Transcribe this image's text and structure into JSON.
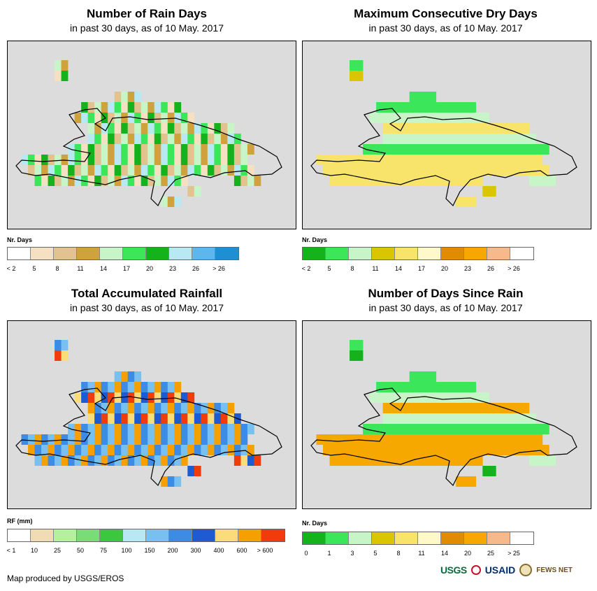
{
  "panels": [
    {
      "id": "rain-days",
      "title": "Number of Rain Days",
      "subtitle": "in past 30 days, as of 10 May. 2017",
      "legend_title": "Nr. Days",
      "legend_ticks": [
        "< 2",
        "5",
        "8",
        "11",
        "14",
        "17",
        "20",
        "23",
        "26",
        "> 26"
      ],
      "legend_colors": [
        "#ffffff",
        "#f5e1c2",
        "#e2c38f",
        "#cfa23d",
        "#c8f5c8",
        "#3ce65a",
        "#16b21e",
        "#b8e8f2",
        "#5fb6ea",
        "#1e8fd0"
      ],
      "grid_fill": [
        "#e2c38f",
        "#cfa23d",
        "#3ce65a",
        "#16b21e",
        "#c8f5c8",
        "#b8e8f2",
        "#f5e1c2"
      ]
    },
    {
      "id": "max-dry-days",
      "title": "Maximum Consecutive Dry Days",
      "subtitle": "in past 30 days, as of 10 May. 2017",
      "legend_title": "Nr. Days",
      "legend_ticks": [
        "< 2",
        "5",
        "8",
        "11",
        "14",
        "17",
        "20",
        "23",
        "26",
        "> 26"
      ],
      "legend_colors": [
        "#16b21e",
        "#3ce65a",
        "#c8f5c8",
        "#d9c600",
        "#f8e46a",
        "#fff8c8",
        "#e08c00",
        "#f6a800",
        "#f7b98a",
        "#ffffff"
      ],
      "grid_fill": [
        "#c8f5c8",
        "#3ce65a",
        "#d9c600",
        "#f8e46a"
      ]
    },
    {
      "id": "total-rainfall",
      "title": "Total Accumulated Rainfall",
      "subtitle": "in past 30 days, as of 10 May. 2017",
      "legend_title": "RF (mm)",
      "legend_ticks": [
        "< 1",
        "10",
        "25",
        "50",
        "75",
        "100",
        "150",
        "200",
        "300",
        "400",
        "600",
        "> 600"
      ],
      "legend_colors": [
        "#ffffff",
        "#f0dcb4",
        "#b4f0a0",
        "#78dc78",
        "#3cc83c",
        "#b8e8f2",
        "#78c0f0",
        "#3c8ce6",
        "#1e5ad2",
        "#fadc78",
        "#f5a000",
        "#f03c0a"
      ],
      "grid_fill": [
        "#1e5ad2",
        "#3c8ce6",
        "#fadc78",
        "#f5a000",
        "#f03c0a",
        "#78c0f0"
      ]
    },
    {
      "id": "days-since-rain",
      "title": "Number of Days Since Rain",
      "subtitle": "in past 30 days, as of 10 May. 2017",
      "legend_title": "Nr. Days",
      "legend_ticks": [
        "0",
        "1",
        "3",
        "5",
        "8",
        "11",
        "14",
        "20",
        "25",
        "> 25"
      ],
      "legend_colors": [
        "#16b21e",
        "#3ce65a",
        "#c8f5c8",
        "#d9c600",
        "#f8e46a",
        "#fff8c8",
        "#e08c00",
        "#f6a800",
        "#f7b98a",
        "#ffffff"
      ],
      "grid_fill": [
        "#c8f5c8",
        "#3ce65a",
        "#16b21e",
        "#f6a800"
      ]
    }
  ],
  "credit": "Map produced by USGS/EROS",
  "logos": {
    "usgs": "USGS",
    "usaid": "USAID",
    "fews": "FEWS NET"
  },
  "colors": {
    "ocean": "#dcdcdc",
    "coast": "#000000"
  }
}
